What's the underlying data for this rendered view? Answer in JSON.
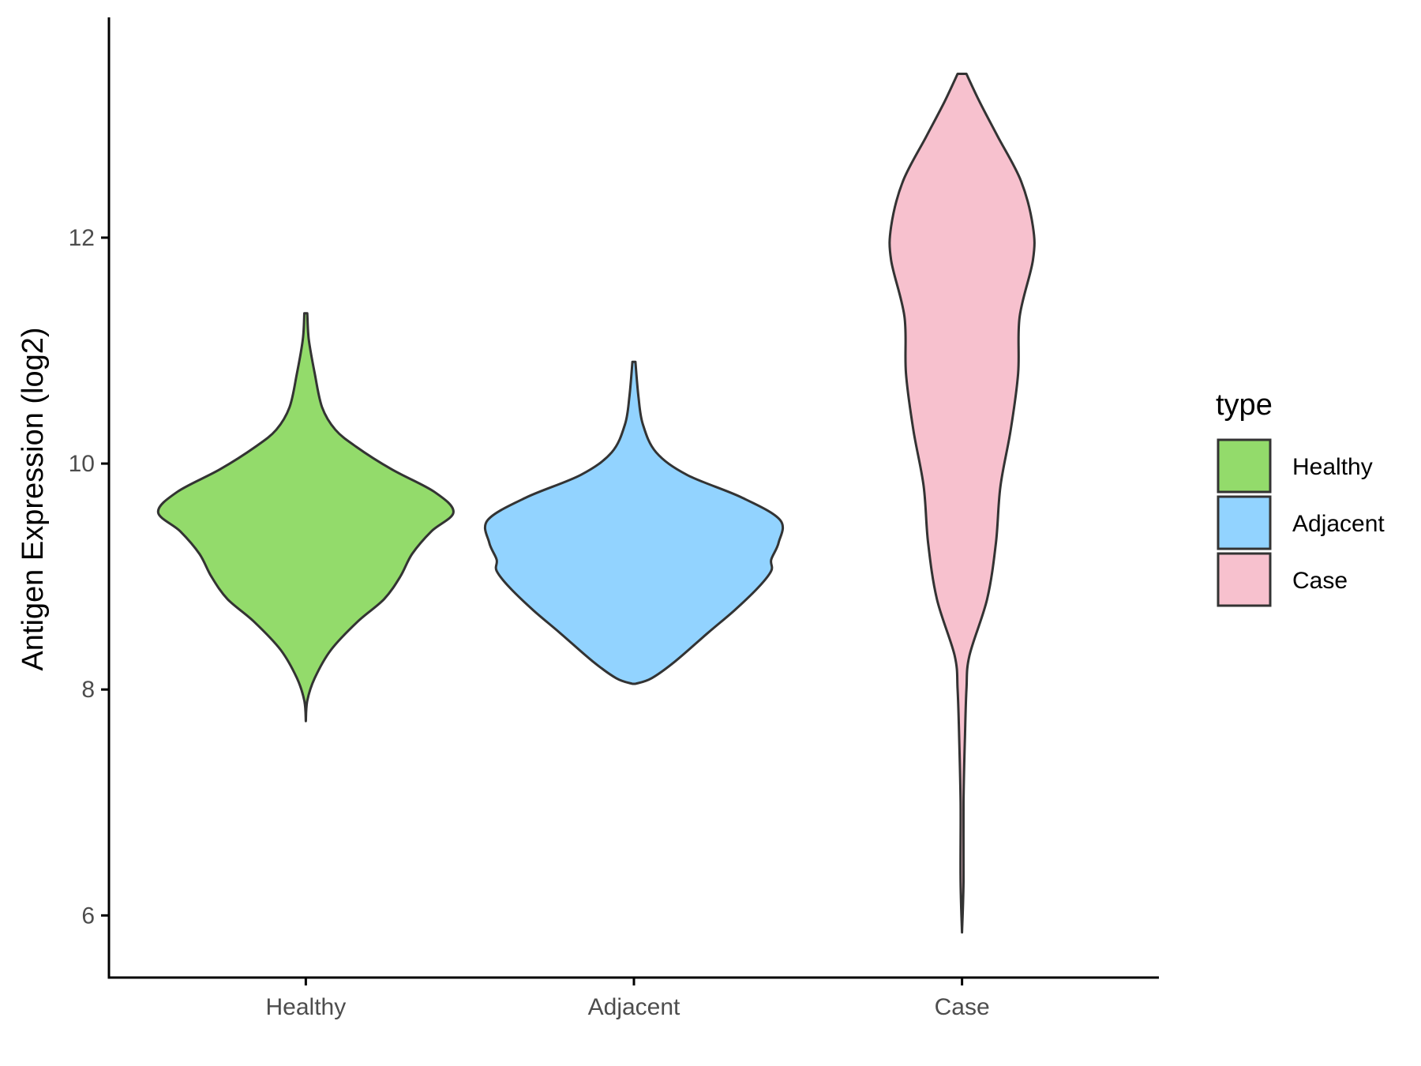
{
  "chart_data": {
    "type": "violin",
    "ylabel": "Antigen Expression (log2)",
    "xlabel": "",
    "ylim": [
      5.45,
      13.95
    ],
    "yticks": [
      6,
      8,
      10,
      12
    ],
    "categories": [
      "Healthy",
      "Adjacent",
      "Case"
    ],
    "legend": {
      "title": "type",
      "placement": "right"
    },
    "grid": false,
    "series": [
      {
        "name": "Healthy",
        "color": "#93DB6B",
        "min": 7.72,
        "max": 11.33,
        "density": [
          [
            7.72,
            0.0
          ],
          [
            7.9,
            0.01
          ],
          [
            8.1,
            0.06
          ],
          [
            8.35,
            0.17
          ],
          [
            8.6,
            0.35
          ],
          [
            8.8,
            0.53
          ],
          [
            9.0,
            0.64
          ],
          [
            9.2,
            0.72
          ],
          [
            9.4,
            0.85
          ],
          [
            9.57,
            1.0
          ],
          [
            9.75,
            0.87
          ],
          [
            9.95,
            0.58
          ],
          [
            10.15,
            0.34
          ],
          [
            10.3,
            0.2
          ],
          [
            10.5,
            0.11
          ],
          [
            10.8,
            0.06
          ],
          [
            11.1,
            0.02
          ],
          [
            11.33,
            0.01
          ]
        ]
      },
      {
        "name": "Adjacent",
        "color": "#92D3FF",
        "min": 8.05,
        "max": 10.9,
        "density": [
          [
            8.05,
            0.01
          ],
          [
            8.1,
            0.12
          ],
          [
            8.25,
            0.28
          ],
          [
            8.5,
            0.5
          ],
          [
            8.7,
            0.68
          ],
          [
            8.9,
            0.84
          ],
          [
            9.05,
            0.93
          ],
          [
            9.15,
            0.93
          ],
          [
            9.3,
            0.98
          ],
          [
            9.5,
            0.99
          ],
          [
            9.7,
            0.73
          ],
          [
            9.9,
            0.36
          ],
          [
            10.1,
            0.15
          ],
          [
            10.35,
            0.06
          ],
          [
            10.6,
            0.03
          ],
          [
            10.9,
            0.01
          ]
        ]
      },
      {
        "name": "Case",
        "color": "#F7C1CE",
        "min": 5.85,
        "max": 13.45,
        "density": [
          [
            5.85,
            0.0
          ],
          [
            6.3,
            0.01
          ],
          [
            7.0,
            0.01
          ],
          [
            7.6,
            0.02
          ],
          [
            8.0,
            0.03
          ],
          [
            8.3,
            0.05
          ],
          [
            8.8,
            0.17
          ],
          [
            9.3,
            0.23
          ],
          [
            9.8,
            0.26
          ],
          [
            10.3,
            0.33
          ],
          [
            10.8,
            0.38
          ],
          [
            11.3,
            0.39
          ],
          [
            11.8,
            0.48
          ],
          [
            12.1,
            0.48
          ],
          [
            12.5,
            0.4
          ],
          [
            12.9,
            0.24
          ],
          [
            13.2,
            0.12
          ],
          [
            13.45,
            0.03
          ]
        ]
      }
    ]
  }
}
